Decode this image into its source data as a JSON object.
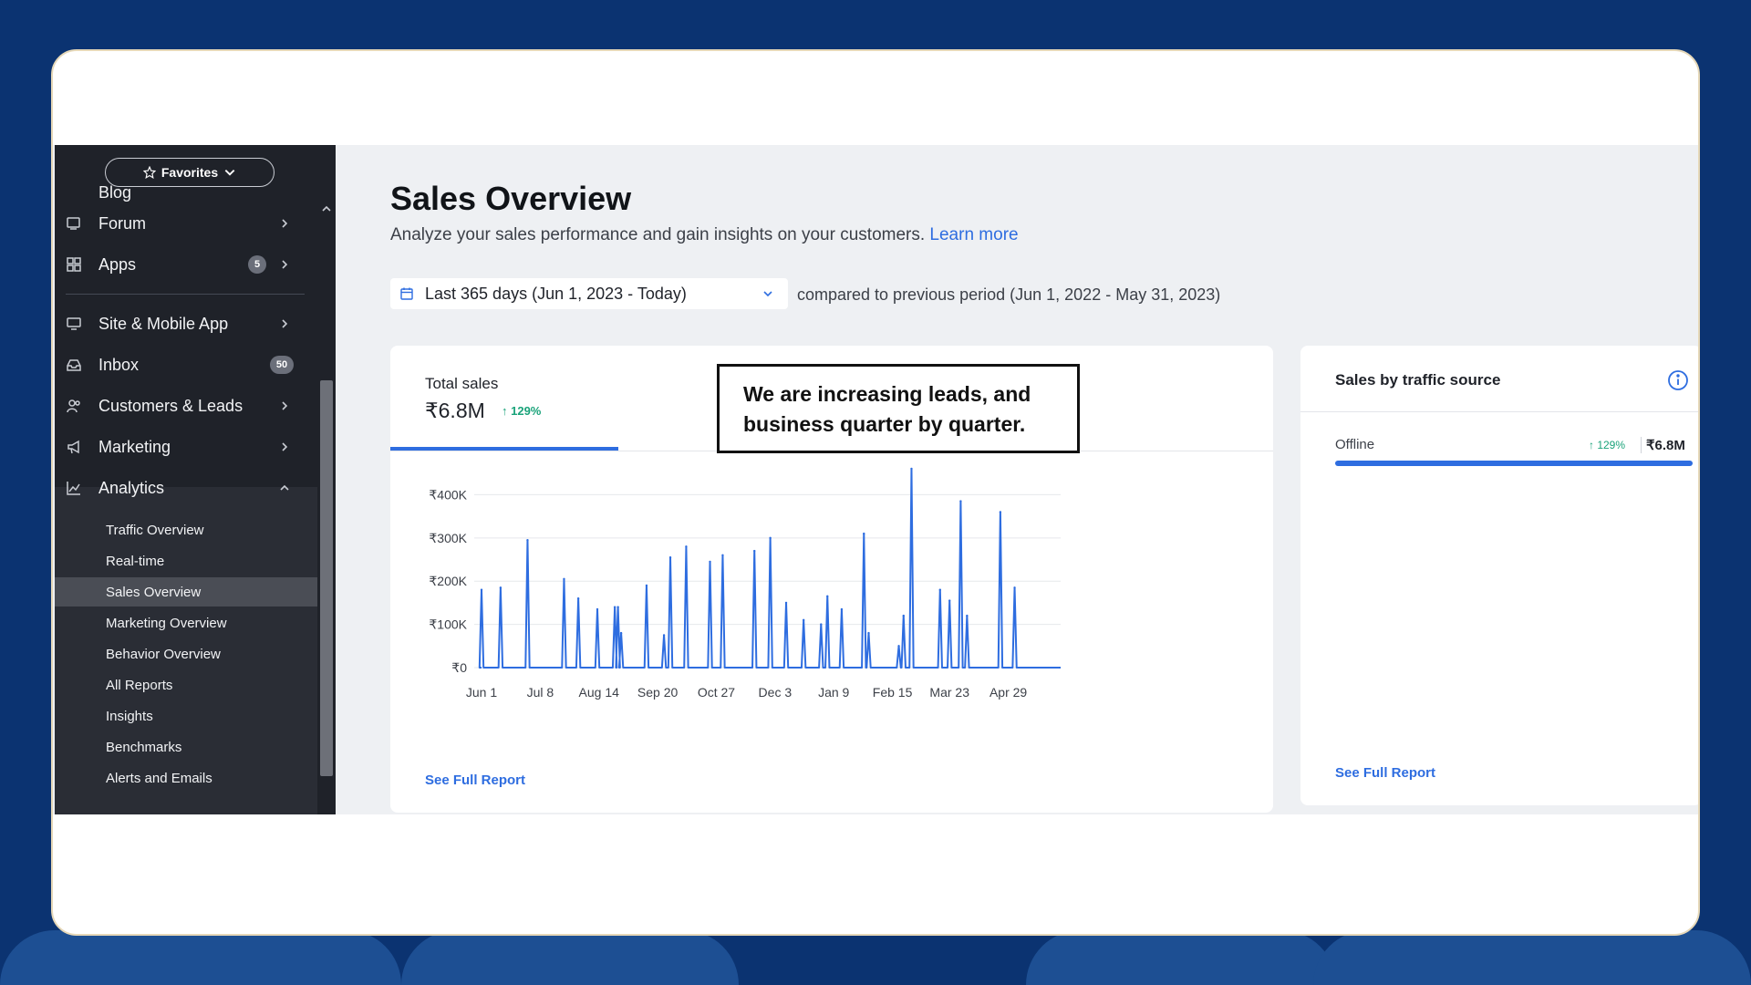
{
  "sidebar": {
    "favorites_label": "Favorites",
    "partial_item": "Blog",
    "items": [
      {
        "label": "Forum"
      },
      {
        "label": "Apps",
        "badge": "5"
      },
      {
        "label": "Site & Mobile App"
      },
      {
        "label": "Inbox",
        "badge": "50"
      },
      {
        "label": "Customers & Leads"
      },
      {
        "label": "Marketing"
      },
      {
        "label": "Analytics"
      }
    ],
    "analytics_sub": [
      "Traffic Overview",
      "Real-time",
      "Sales Overview",
      "Marketing Overview",
      "Behavior Overview",
      "All Reports",
      "Insights",
      "Benchmarks",
      "Alerts and Emails"
    ],
    "active_sub": "Sales Overview"
  },
  "main": {
    "title": "Sales Overview",
    "subtitle": "Analyze your sales performance and gain insights on your customers.",
    "learn_more": "Learn more",
    "date_range": "Last 365 days (Jun 1, 2023 - Today)",
    "compare_text": "compared to previous period (Jun 1, 2022 - May 31, 2023)"
  },
  "total_sales": {
    "label": "Total sales",
    "value": "₹6.8M",
    "change": "↑ 129%",
    "see_full_report": "See Full Report"
  },
  "annotation": {
    "line1": "We are increasing leads, and",
    "line2": "business quarter by quarter."
  },
  "traffic": {
    "title": "Sales by traffic source",
    "source": "Offline",
    "change": "↑ 129%",
    "value": "₹6.8M",
    "share": 1.0,
    "see_full_report": "See Full Report"
  },
  "colors": {
    "accent": "#2e6de0",
    "positive": "#1aa37a",
    "sidebar_bg": "#1f2229",
    "page_bg": "#0b3371"
  },
  "chart_data": {
    "type": "line",
    "title": "",
    "xlabel": "",
    "ylabel": "",
    "ylim": [
      0,
      460000
    ],
    "y_ticks": [
      "₹0",
      "₹100K",
      "₹200K",
      "₹300K",
      "₹400K"
    ],
    "y_tick_values": [
      0,
      100000,
      200000,
      300000,
      400000
    ],
    "x_ticks": [
      "Jun 1",
      "Jul 8",
      "Aug 14",
      "Sep 20",
      "Oct 27",
      "Dec 3",
      "Jan 9",
      "Feb 15",
      "Mar 23",
      "Apr 29"
    ],
    "x_tick_days": [
      0,
      37,
      74,
      111,
      148,
      185,
      222,
      259,
      295,
      332
    ],
    "x_max_day": 365,
    "series": [
      {
        "spikes": [
          [
            0,
            180000
          ],
          [
            12,
            185000
          ],
          [
            29,
            295000
          ],
          [
            52,
            205000
          ],
          [
            61,
            160000
          ],
          [
            73,
            135000
          ],
          [
            84,
            140000
          ],
          [
            86,
            140000
          ],
          [
            88,
            80000
          ],
          [
            104,
            190000
          ],
          [
            115,
            75000
          ],
          [
            119,
            255000
          ],
          [
            129,
            280000
          ],
          [
            144,
            245000
          ],
          [
            152,
            260000
          ],
          [
            172,
            270000
          ],
          [
            182,
            300000
          ],
          [
            192,
            150000
          ],
          [
            203,
            110000
          ],
          [
            214,
            100000
          ],
          [
            218,
            165000
          ],
          [
            227,
            135000
          ],
          [
            241,
            310000
          ],
          [
            244,
            80000
          ],
          [
            263,
            50000
          ],
          [
            266,
            120000
          ],
          [
            271,
            460000
          ],
          [
            289,
            180000
          ],
          [
            295,
            155000
          ],
          [
            302,
            385000
          ],
          [
            306,
            120000
          ],
          [
            327,
            360000
          ],
          [
            336,
            185000
          ]
        ]
      }
    ]
  }
}
